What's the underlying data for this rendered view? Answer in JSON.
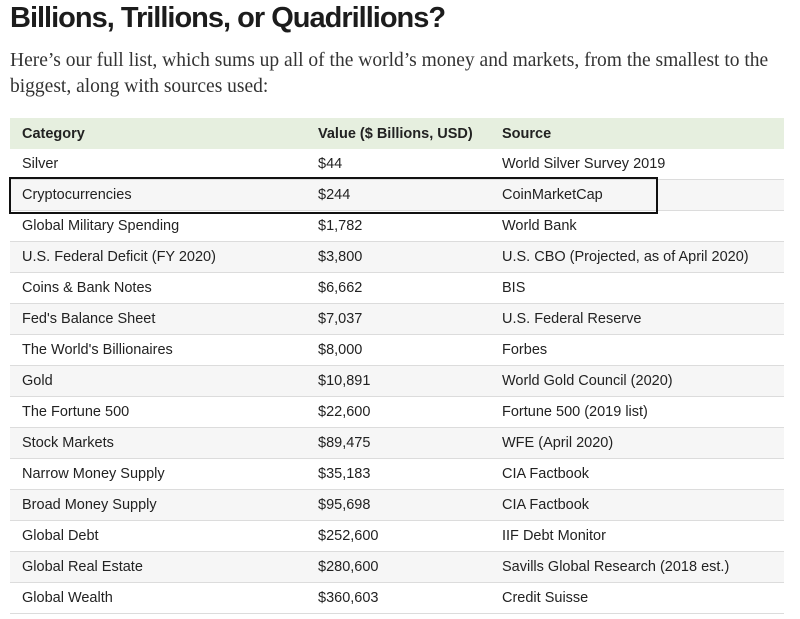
{
  "title": "Billions, Trillions, or Quadrillions?",
  "intro": "Here’s our full list, which sums up all of the world’s money and markets, from the smallest to the biggest, along with sources used:",
  "table": {
    "headers": [
      "Category",
      "Value ($ Billions, USD)",
      "Source"
    ],
    "rows": [
      [
        "Silver",
        "$44",
        "World Silver Survey 2019"
      ],
      [
        "Cryptocurrencies",
        "$244",
        "CoinMarketCap"
      ],
      [
        "Global Military Spending",
        "$1,782",
        "World Bank"
      ],
      [
        "U.S. Federal Deficit (FY 2020)",
        "$3,800",
        "U.S. CBO (Projected, as of April 2020)"
      ],
      [
        "Coins & Bank Notes",
        "$6,662",
        "BIS"
      ],
      [
        "Fed's Balance Sheet",
        "$7,037",
        "U.S. Federal Reserve"
      ],
      [
        "The World's Billionaires",
        "$8,000",
        "Forbes"
      ],
      [
        "Gold",
        "$10,891",
        "World Gold Council (2020)"
      ],
      [
        "The Fortune 500",
        "$22,600",
        "Fortune 500 (2019 list)"
      ],
      [
        "Stock Markets",
        "$89,475",
        "WFE (April 2020)"
      ],
      [
        "Narrow Money Supply",
        "$35,183",
        "CIA Factbook"
      ],
      [
        "Broad Money Supply",
        "$95,698",
        "CIA Factbook"
      ],
      [
        "Global Debt",
        "$252,600",
        "IIF Debt Monitor"
      ],
      [
        "Global Real Estate",
        "$280,600",
        "Savills Global Research (2018 est.)"
      ],
      [
        "Global Wealth",
        "$360,603",
        "Credit Suisse"
      ]
    ],
    "highlighted_row": "Cryptocurrencies"
  },
  "colors": {
    "header_bg": "#e6efdf",
    "alt_row_bg": "#f6f6f6",
    "highlight_border": "#111111"
  }
}
